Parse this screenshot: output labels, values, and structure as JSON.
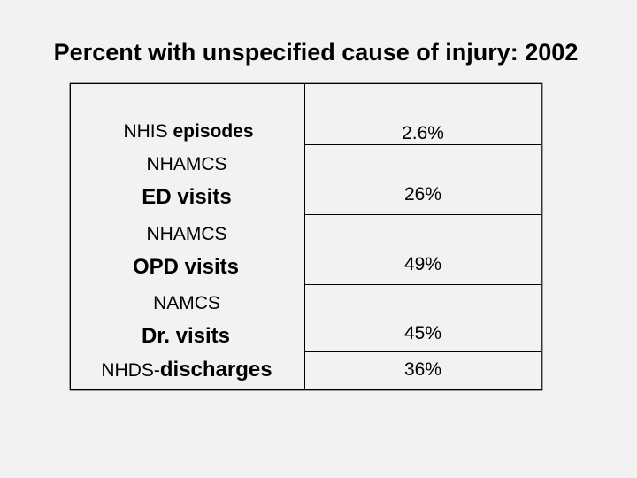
{
  "title": "Percent with unspecified cause of injury: 2002",
  "rows": [
    {
      "source": "NHIS",
      "measure": "episodes",
      "value": "2.6%"
    },
    {
      "source": "NHAMCS",
      "measure": "ED visits",
      "value": "26%"
    },
    {
      "source": "NHAMCS",
      "measure": "OPD visits",
      "value": "49%"
    },
    {
      "source": "NAMCS",
      "measure": "Dr. visits",
      "value": "45%"
    },
    {
      "source": "NHDS-",
      "measure": "discharges",
      "value": "36%"
    }
  ]
}
